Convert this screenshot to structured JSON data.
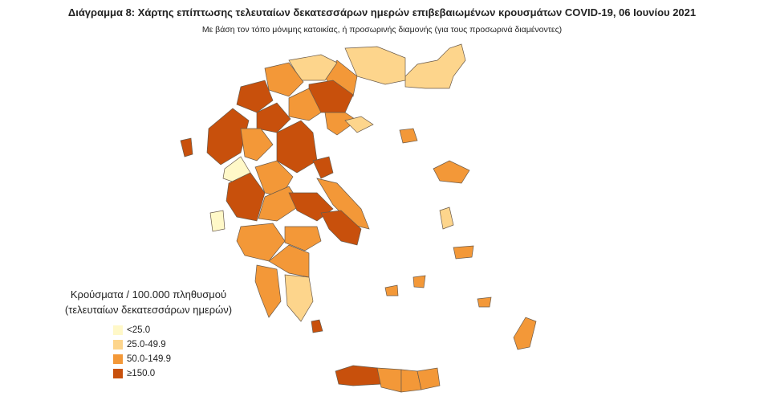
{
  "title": "Διάγραμμα 8: Χάρτης επίπτωσης τελευταίων δεκατεσσάρων ημερών επιβεβαιωμένων κρουσμάτων COVID-19, 06 Ιουνίου 2021",
  "subtitle": "Με βάση τον τόπο μόνιμης κατοικίας, ή προσωρινής διαμονής (για τους προσωρινά διαμένοντες)",
  "legend": {
    "title": [
      "Κρούσματα / 100.000 πληθυσμού",
      "(τελευταίων δεκατεσσάρων ημερών)"
    ],
    "items": [
      {
        "label": "<25.0",
        "color": "#fff8c8"
      },
      {
        "label": "25.0-49.9",
        "color": "#fdd58c"
      },
      {
        "label": "50.0-149.9",
        "color": "#f39838"
      },
      {
        "label": "≥150.0",
        "color": "#c8500c"
      }
    ]
  }
}
